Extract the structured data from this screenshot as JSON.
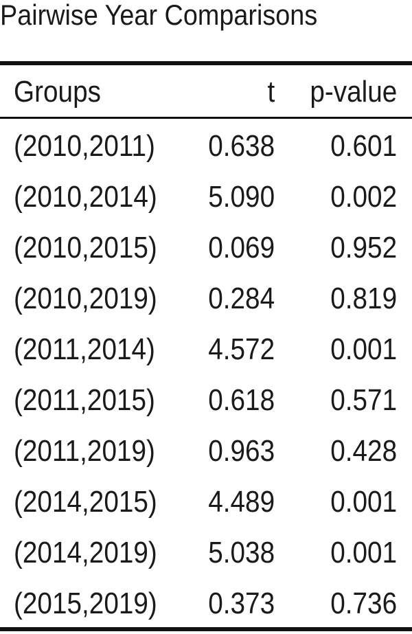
{
  "title": "Pairwise Year Comparisons",
  "table": {
    "header": [
      "Groups",
      "t",
      "p-value"
    ],
    "rows": [
      [
        "(2010,2011)",
        "0.638",
        "0.601"
      ],
      [
        "(2010,2014)",
        "5.090",
        "0.002"
      ],
      [
        "(2010,2015)",
        "0.069",
        "0.952"
      ],
      [
        "(2010,2019)",
        "0.284",
        "0.819"
      ],
      [
        "(2011,2014)",
        "4.572",
        "0.001"
      ],
      [
        "(2011,2015)",
        "0.618",
        "0.571"
      ],
      [
        "(2011,2019)",
        "0.963",
        "0.428"
      ],
      [
        "(2014,2015)",
        "4.489",
        "0.001"
      ],
      [
        "(2014,2019)",
        "5.038",
        "0.001"
      ],
      [
        "(2015,2019)",
        "0.373",
        "0.736"
      ]
    ]
  }
}
